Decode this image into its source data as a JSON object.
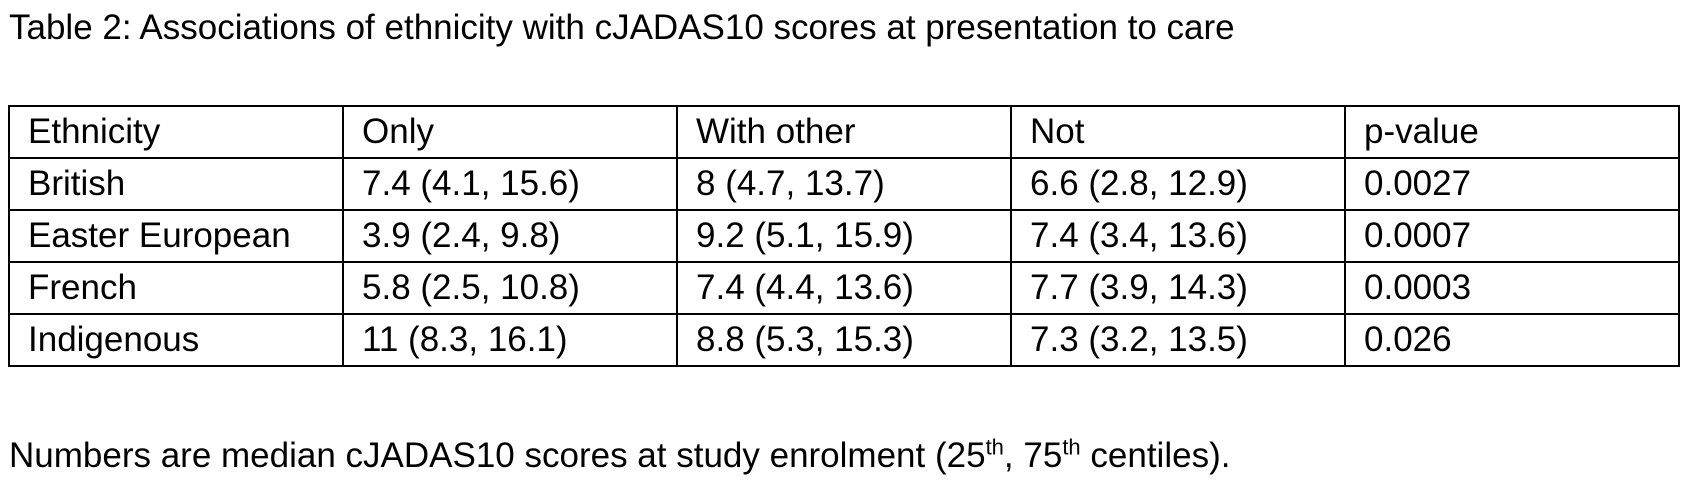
{
  "caption": "Table 2: Associations of ethnicity with cJADAS10 scores at presentation to care",
  "table": {
    "headers": [
      "Ethnicity",
      "Only",
      "With other",
      "Not",
      "p-value"
    ],
    "rows": [
      [
        "British",
        "7.4 (4.1, 15.6)",
        "8 (4.7, 13.7)",
        "6.6 (2.8, 12.9)",
        "0.0027"
      ],
      [
        "Easter European",
        "3.9 (2.4, 9.8)",
        "9.2 (5.1, 15.9)",
        "7.4 (3.4, 13.6)",
        "0.0007"
      ],
      [
        "French",
        "5.8 (2.5, 10.8)",
        "7.4 (4.4, 13.6)",
        "7.7 (3.9, 14.3)",
        "0.0003"
      ],
      [
        "Indigenous",
        "11 (8.3, 16.1)",
        "8.8 (5.3, 15.3)",
        "7.3 (3.2, 13.5)",
        "0.026"
      ]
    ]
  },
  "note": {
    "part1": "Numbers are median cJADAS10 scores at study enrolment (25",
    "sup1": "th",
    "part2": ", 75",
    "sup2": "th",
    "part3": " centiles)."
  }
}
